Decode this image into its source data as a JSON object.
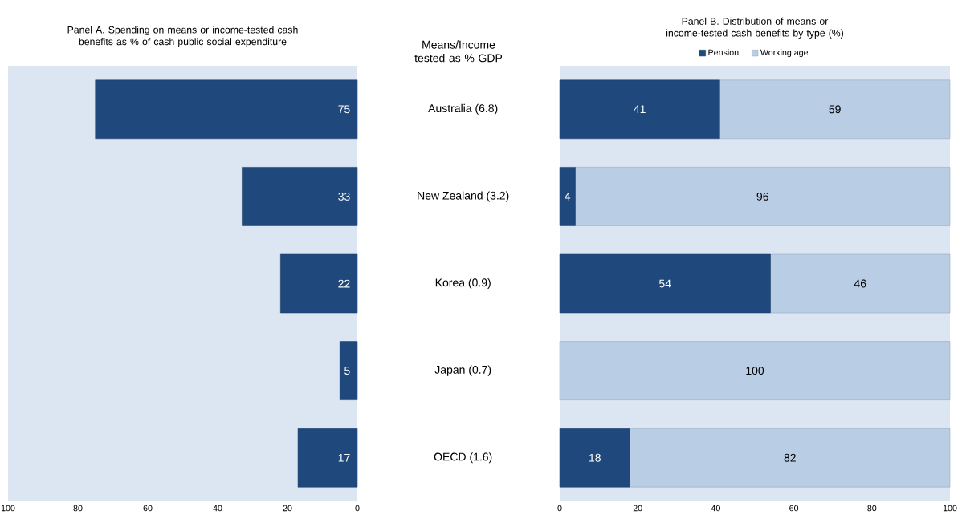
{
  "chart_data": [
    {
      "type": "bar",
      "orientation": "horizontal",
      "title": "Panel A. Spending on means or income-tested cash benefits as % of cash public social expenditure",
      "annotations": [
        "Means/Income tested as % GDP"
      ],
      "categories": [
        "Australia (6.8)",
        "New Zealand (3.2)",
        "Korea (0.9)",
        "Japan (0.7)",
        "OECD (1.6)"
      ],
      "series": [
        {
          "color": "#1f497d",
          "values": [
            75,
            33,
            22,
            5,
            17
          ]
        }
      ],
      "xlim": [
        100,
        0
      ],
      "xticks": [
        100,
        80,
        60,
        40,
        20,
        0
      ],
      "data_labels": true
    },
    {
      "type": "bar",
      "orientation": "horizontal",
      "stacked": true,
      "title": "Panel B. Distribution of means or income-tested cash benefits by type (%)",
      "series": [
        {
          "name": "Pension",
          "color": "#1f497d",
          "values": [
            41,
            4,
            54,
            0,
            18
          ],
          "value_labels": [
            "41",
            "4",
            "54",
            null,
            "18"
          ]
        },
        {
          "name": "Working age",
          "color": "#b9cde5",
          "values": [
            59,
            96,
            46,
            100,
            82
          ],
          "value_labels": [
            "59",
            "96",
            "46",
            "100",
            "82"
          ]
        }
      ],
      "xlim": [
        0,
        100
      ],
      "xticks": [
        0,
        20,
        40,
        60,
        80,
        100
      ],
      "legend": "top",
      "tick_labels": "x"
    }
  ]
}
